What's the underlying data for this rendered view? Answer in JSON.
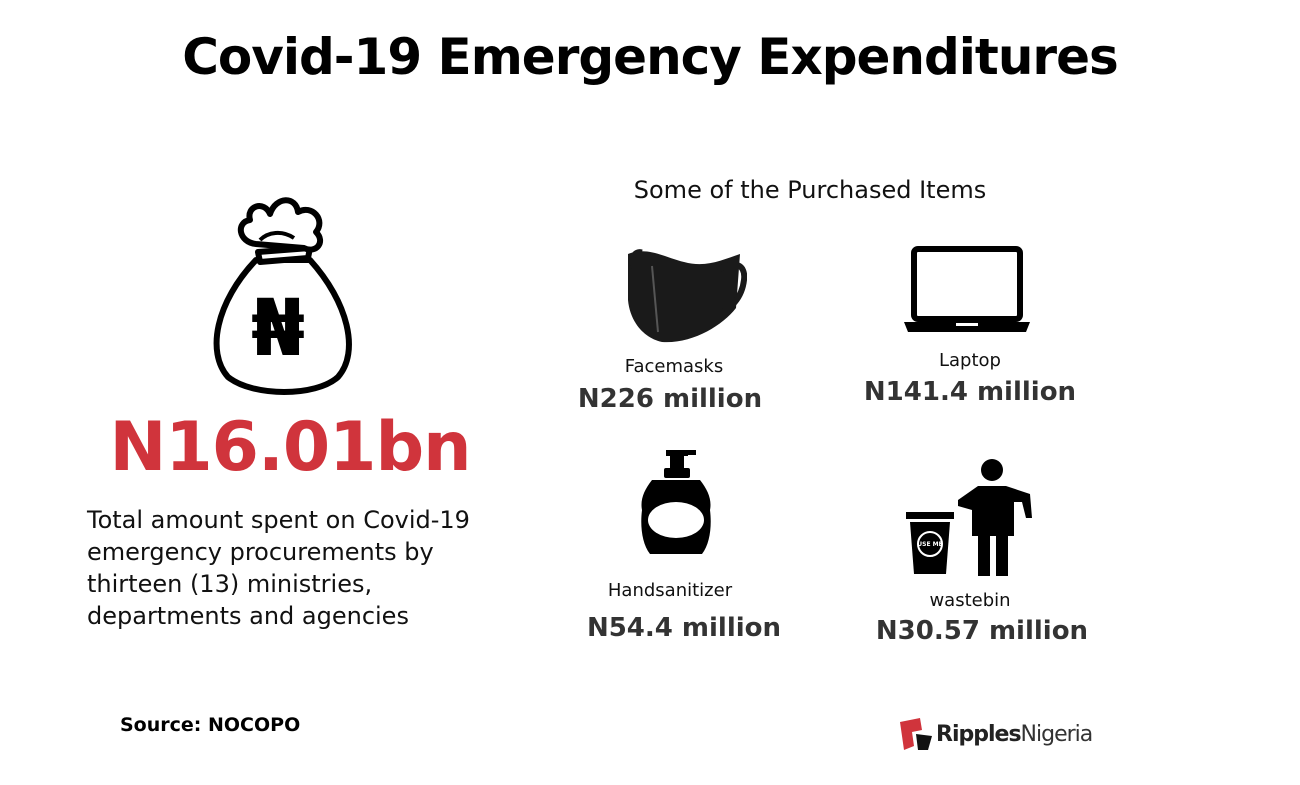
{
  "title": "Covid-19 Emergency Expenditures",
  "total": {
    "amount": "N16.01bn",
    "description": "Total amount spent on Covid-19 emergency procurements by thirteen (13) ministries, departments and agencies",
    "icon": "money-bag-icon",
    "bag_symbol": "₦"
  },
  "items_heading": "Some of the Purchased Items",
  "items": [
    {
      "label": "Facemasks",
      "amount": "N226 million",
      "icon": "facemask-icon"
    },
    {
      "label": "Laptop",
      "amount": "N141.4 million",
      "icon": "laptop-icon"
    },
    {
      "label": "Handsanitizer",
      "amount": "N54.4 million",
      "icon": "hand-sanitizer-icon"
    },
    {
      "label": "wastebin",
      "amount": "N30.57 million",
      "icon": "wastebin-icon"
    }
  ],
  "bin_text": "USE ME",
  "source": "Source: NOCOPO",
  "brand": {
    "part1": "Ripples",
    "part2": "Nigeria"
  },
  "colors": {
    "accent": "#d0343c",
    "text": "#111111",
    "amount": "#333333"
  }
}
